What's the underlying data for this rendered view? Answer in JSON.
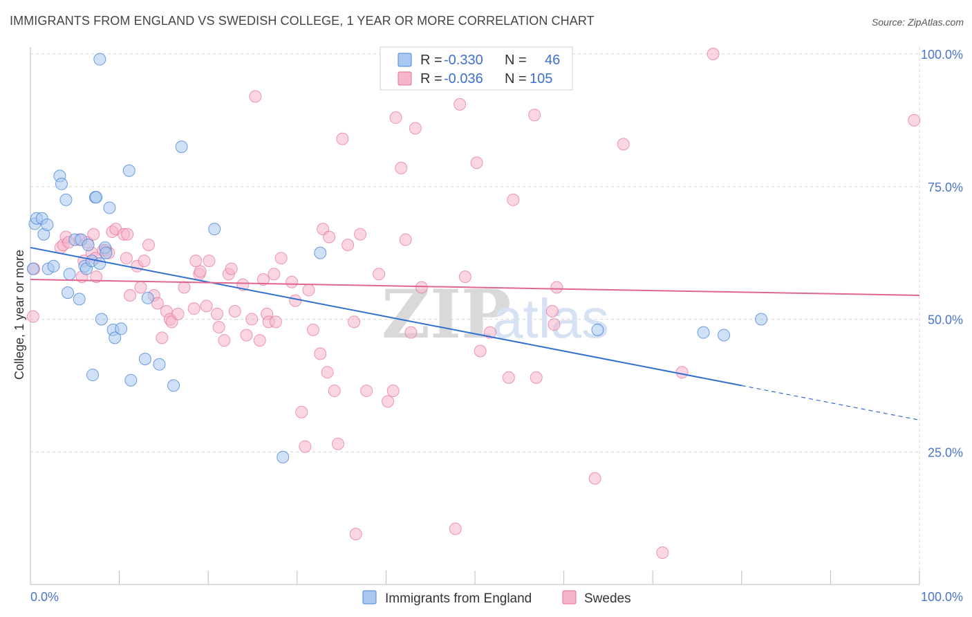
{
  "title": "IMMIGRANTS FROM ENGLAND VS SWEDISH COLLEGE, 1 YEAR OR MORE CORRELATION CHART",
  "source": "Source: ZipAtlas.com",
  "watermark": {
    "zip": "ZIP",
    "atlas": "atlas"
  },
  "colors": {
    "blue": "#4a86d8",
    "blue_fill": "#a9c8f0",
    "pink": "#e56f97",
    "pink_fill": "#f5b5ca",
    "grid": "#d6d6d6",
    "tick": "#4a74c9"
  },
  "legend": {
    "rows": [
      {
        "r_label": "R =",
        "r_value": "-0.330",
        "n_label": "N =",
        "n_value": "46"
      },
      {
        "r_label": "R =",
        "r_value": "-0.036",
        "n_label": "N =",
        "n_value": "105"
      }
    ]
  },
  "bottom_legend": [
    "Immigrants from England",
    "Swedes"
  ],
  "chart_data": {
    "type": "scatter",
    "title": "IMMIGRANTS FROM ENGLAND VS SWEDISH COLLEGE, 1 YEAR OR MORE CORRELATION CHART",
    "xlabel": "",
    "ylabel": "College, 1 year or more",
    "xlim": [
      0,
      100
    ],
    "ylim": [
      0,
      100
    ],
    "x_ticks": [
      "0.0%",
      "100.0%"
    ],
    "y_ticks": [
      {
        "v": 100,
        "label": "100.0%"
      },
      {
        "v": 75,
        "label": "75.0%"
      },
      {
        "v": 50,
        "label": "50.0%"
      },
      {
        "v": 25,
        "label": "25.0%"
      }
    ],
    "grid": "horizontal dashed",
    "legend_position": "top-center",
    "series": [
      {
        "name": "Immigrants from England",
        "r": -0.33,
        "n": 46,
        "trend": {
          "x0": 0,
          "y0": 63.5,
          "x1": 80,
          "y1": 37.5,
          "dashed_to_x": 100,
          "dashed_to_y": 31.0
        },
        "points": [
          [
            0.3,
            59.5
          ],
          [
            0.5,
            68
          ],
          [
            0.7,
            69
          ],
          [
            1.3,
            69
          ],
          [
            1.5,
            66
          ],
          [
            1.9,
            67.8
          ],
          [
            2,
            59.5
          ],
          [
            2.6,
            60
          ],
          [
            3.3,
            77
          ],
          [
            3.5,
            75.5
          ],
          [
            4,
            72.5
          ],
          [
            4.2,
            55
          ],
          [
            4.4,
            58.5
          ],
          [
            5,
            65
          ],
          [
            5.5,
            53.8
          ],
          [
            5.7,
            65
          ],
          [
            6.1,
            60
          ],
          [
            6.3,
            59.5
          ],
          [
            6.5,
            64
          ],
          [
            6.9,
            61
          ],
          [
            7,
            39.5
          ],
          [
            7.3,
            73
          ],
          [
            7.4,
            73
          ],
          [
            7.8,
            60.5
          ],
          [
            7.8,
            99
          ],
          [
            8,
            50
          ],
          [
            8.4,
            63.5
          ],
          [
            8.5,
            62.5
          ],
          [
            8.9,
            71
          ],
          [
            9.3,
            48
          ],
          [
            9.5,
            46.5
          ],
          [
            10.2,
            48.2
          ],
          [
            11.1,
            78
          ],
          [
            11.3,
            38.5
          ],
          [
            12.9,
            42.5
          ],
          [
            13.2,
            54
          ],
          [
            14.5,
            41.5
          ],
          [
            16.1,
            37.5
          ],
          [
            17,
            82.5
          ],
          [
            20.7,
            67
          ],
          [
            28.4,
            24
          ],
          [
            32.6,
            62.5
          ],
          [
            63.8,
            48
          ],
          [
            75.7,
            47.5
          ],
          [
            78,
            47
          ],
          [
            82.2,
            50
          ]
        ]
      },
      {
        "name": "Swedes",
        "r": -0.036,
        "n": 105,
        "trend": {
          "x0": 0,
          "y0": 57.5,
          "x1": 100,
          "y1": 54.5
        },
        "points": [
          [
            0.3,
            50.5
          ],
          [
            0.4,
            59.5
          ],
          [
            3.4,
            63.5
          ],
          [
            3.7,
            64
          ],
          [
            4,
            65.5
          ],
          [
            4.3,
            64.5
          ],
          [
            5.5,
            65
          ],
          [
            5.8,
            58
          ],
          [
            6,
            61
          ],
          [
            6.4,
            64.5
          ],
          [
            6.9,
            62.5
          ],
          [
            7.1,
            66
          ],
          [
            7.3,
            61.5
          ],
          [
            7.4,
            58
          ],
          [
            8.2,
            63
          ],
          [
            8.5,
            63
          ],
          [
            8.8,
            62.5
          ],
          [
            9.2,
            66.5
          ],
          [
            9.6,
            67
          ],
          [
            10.5,
            66
          ],
          [
            10.9,
            66
          ],
          [
            10.8,
            61.5
          ],
          [
            11.2,
            54.5
          ],
          [
            12,
            60
          ],
          [
            12.4,
            56
          ],
          [
            12.8,
            61
          ],
          [
            13.3,
            64
          ],
          [
            13.9,
            54.5
          ],
          [
            14.3,
            53
          ],
          [
            14.8,
            46.5
          ],
          [
            15.3,
            51.5
          ],
          [
            15.7,
            50
          ],
          [
            15.9,
            49.5
          ],
          [
            16.6,
            51
          ],
          [
            17.3,
            56
          ],
          [
            18.4,
            52
          ],
          [
            18.6,
            61
          ],
          [
            19,
            58.5
          ],
          [
            19.1,
            59
          ],
          [
            19.8,
            52.5
          ],
          [
            20.1,
            61
          ],
          [
            21,
            51
          ],
          [
            21.2,
            48.5
          ],
          [
            21.8,
            46
          ],
          [
            22.3,
            58.5
          ],
          [
            22.6,
            59.5
          ],
          [
            23,
            51.5
          ],
          [
            23.9,
            56.5
          ],
          [
            24.3,
            47
          ],
          [
            24.9,
            50
          ],
          [
            25.3,
            92
          ],
          [
            25.8,
            46
          ],
          [
            26.2,
            57.5
          ],
          [
            26.6,
            51
          ],
          [
            26.8,
            49.5
          ],
          [
            27.4,
            58.5
          ],
          [
            27.6,
            49.5
          ],
          [
            28.2,
            61.5
          ],
          [
            29.4,
            57
          ],
          [
            29.8,
            53.5
          ],
          [
            30.5,
            32.5
          ],
          [
            30.9,
            26
          ],
          [
            31.3,
            55.5
          ],
          [
            31.8,
            48
          ],
          [
            32.6,
            43.5
          ],
          [
            32.9,
            67
          ],
          [
            33.4,
            40
          ],
          [
            33.6,
            65.5
          ],
          [
            34.2,
            36.5
          ],
          [
            34.6,
            26.5
          ],
          [
            35.1,
            84
          ],
          [
            35.7,
            64
          ],
          [
            36.4,
            49.5
          ],
          [
            36.6,
            9.5
          ],
          [
            37.1,
            66
          ],
          [
            37.8,
            36.5
          ],
          [
            39.2,
            58.5
          ],
          [
            40.2,
            34.5
          ],
          [
            40.8,
            36.5
          ],
          [
            41.1,
            88
          ],
          [
            41.7,
            78.5
          ],
          [
            42.2,
            65
          ],
          [
            42.8,
            47.5
          ],
          [
            43.3,
            86
          ],
          [
            44,
            56
          ],
          [
            46.9,
            100
          ],
          [
            47.8,
            10.5
          ],
          [
            48.3,
            90.5
          ],
          [
            48.9,
            58
          ],
          [
            50.2,
            79.5
          ],
          [
            50.6,
            44
          ],
          [
            51.7,
            47.5
          ],
          [
            53.8,
            39
          ],
          [
            54.3,
            72.5
          ],
          [
            56.7,
            88.5
          ],
          [
            56.9,
            39
          ],
          [
            58.7,
            51.5
          ],
          [
            58.9,
            49
          ],
          [
            59.2,
            56
          ],
          [
            63.5,
            20
          ],
          [
            66.7,
            83
          ],
          [
            71.1,
            6
          ],
          [
            73.3,
            40
          ],
          [
            76.8,
            100
          ],
          [
            99.4,
            87.5
          ]
        ]
      }
    ]
  }
}
